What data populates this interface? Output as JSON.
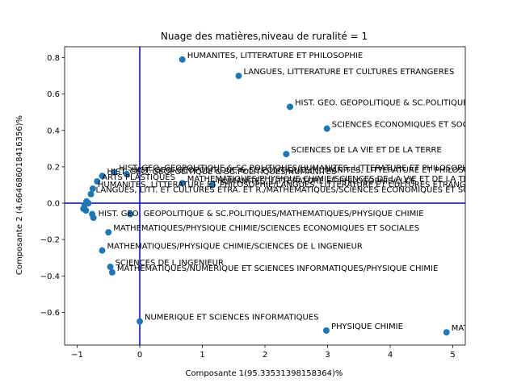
{
  "chart_data": {
    "type": "scatter",
    "title": "Nuage des matières,niveau de ruralité = 1",
    "xlabel": "Composante 1(95.33531398158364)%",
    "ylabel": "Composante 2 (4.664686018416356)%",
    "xlim": [
      -1.2,
      5.2
    ],
    "ylim": [
      -0.78,
      0.86
    ],
    "x_ticks": [
      -1,
      0,
      1,
      2,
      3,
      4,
      5
    ],
    "y_ticks": [
      -0.6,
      -0.4,
      -0.2,
      0.0,
      0.2,
      0.4,
      0.6,
      0.8
    ],
    "x_tick_labels": [
      "−1",
      "0",
      "1",
      "2",
      "3",
      "4",
      "5"
    ],
    "y_tick_labels": [
      "−0.6",
      "−0.4",
      "−0.2",
      "0.0",
      "0.2",
      "0.4",
      "0.6",
      "0.8"
    ],
    "reference_lines": {
      "x": 0,
      "y": 0
    },
    "marker_color": "#1f77b4",
    "reference_color": "#0000cc",
    "points": [
      {
        "x": 0.68,
        "y": 0.79,
        "label": "HUMANITES, LITTERATURE ET PHILOSOPHIE"
      },
      {
        "x": 1.58,
        "y": 0.7,
        "label": "LANGUES, LITTERATURE ET CULTURES ETRANGERES"
      },
      {
        "x": 2.4,
        "y": 0.53,
        "label": "HIST. GEO. GEOPOLITIQUE & SC.POLITIQUES"
      },
      {
        "x": 2.99,
        "y": 0.41,
        "label": "SCIENCES ECONOMIQUES ET SOCIALES"
      },
      {
        "x": 2.34,
        "y": 0.27,
        "label": "SCIENCES DE LA VIE ET DE LA TERRE"
      },
      {
        "x": -0.41,
        "y": 0.17,
        "label": "HIST. GEO. GEOPOLITIQUE & SC.POLITIQUES/HUMANITES, LITTERATURE ET PHILOSOPHIE"
      },
      {
        "x": -0.21,
        "y": 0.16,
        "label": "HIST. GEO. GEOPOLITIQUE & SC.POLITIQUES/HUMANITES, LITTERATURE ET PHILOSOPHIE"
      },
      {
        "x": -0.6,
        "y": 0.15,
        "label": "HIST. GEO. GEOPOLITIQUE & SC.POLITIQUES/HUMANITES"
      },
      {
        "x": -0.68,
        "y": 0.12,
        "label": "ARTS PLASTIQUES"
      },
      {
        "x": 0.68,
        "y": 0.11,
        "label": "MATHEMATIQUES/PHYSIQUE CHIMIE/SCIENCES DE LA VIE ET DE LA TERRE"
      },
      {
        "x": 1.16,
        "y": 0.1,
        "label": "HUMANITES, LITTERATURE ET PHILOSOPHIE/LLCE"
      },
      {
        "x": -0.75,
        "y": 0.08,
        "label": "HUMANITES, LITTERATURE ET PHILOSOPHIE/LANGUES, LITTERATURE ET CULTURES ETRANGERES"
      },
      {
        "x": -0.78,
        "y": 0.05,
        "label": "LANGUES, LITT. ET CULTURES ETRA. ET R./MATHEMATIQUES/SCIENCES ECONOMIQUES ET SOCIALES"
      },
      {
        "x": -0.85,
        "y": 0.01,
        "label": ""
      },
      {
        "x": -0.82,
        "y": 0.0,
        "label": ""
      },
      {
        "x": -0.88,
        "y": -0.01,
        "label": ""
      },
      {
        "x": -0.9,
        "y": -0.03,
        "label": ""
      },
      {
        "x": -0.86,
        "y": -0.04,
        "label": ""
      },
      {
        "x": -0.76,
        "y": -0.06,
        "label": ""
      },
      {
        "x": -0.74,
        "y": -0.08,
        "label": "HIST. GEO. GEOPOLITIQUE & SC.POLITIQUES/MATHEMATIQUES/PHYSIQUE CHIMIE"
      },
      {
        "x": -0.15,
        "y": -0.06,
        "label": ""
      },
      {
        "x": -0.5,
        "y": -0.16,
        "label": "MATHEMATIQUES/PHYSIQUE CHIMIE/SCIENCES ECONOMIQUES ET SOCIALES"
      },
      {
        "x": -0.6,
        "y": -0.26,
        "label": "MATHEMATIQUES/PHYSIQUE CHIMIE/SCIENCES DE L INGENIEUR"
      },
      {
        "x": -0.47,
        "y": -0.35,
        "label": "SCIENCES DE L INGENIEUR"
      },
      {
        "x": -0.44,
        "y": -0.38,
        "label": "MATHEMATIQUES/NUMERIQUE ET SCIENCES INFORMATIQUES/PHYSIQUE CHIMIE"
      },
      {
        "x": 0.0,
        "y": -0.65,
        "label": "NUMERIQUE ET SCIENCES INFORMATIQUES"
      },
      {
        "x": 2.98,
        "y": -0.7,
        "label": "PHYSIQUE CHIMIE"
      },
      {
        "x": 4.9,
        "y": -0.71,
        "label": "MATHEMATIQUES"
      }
    ]
  }
}
